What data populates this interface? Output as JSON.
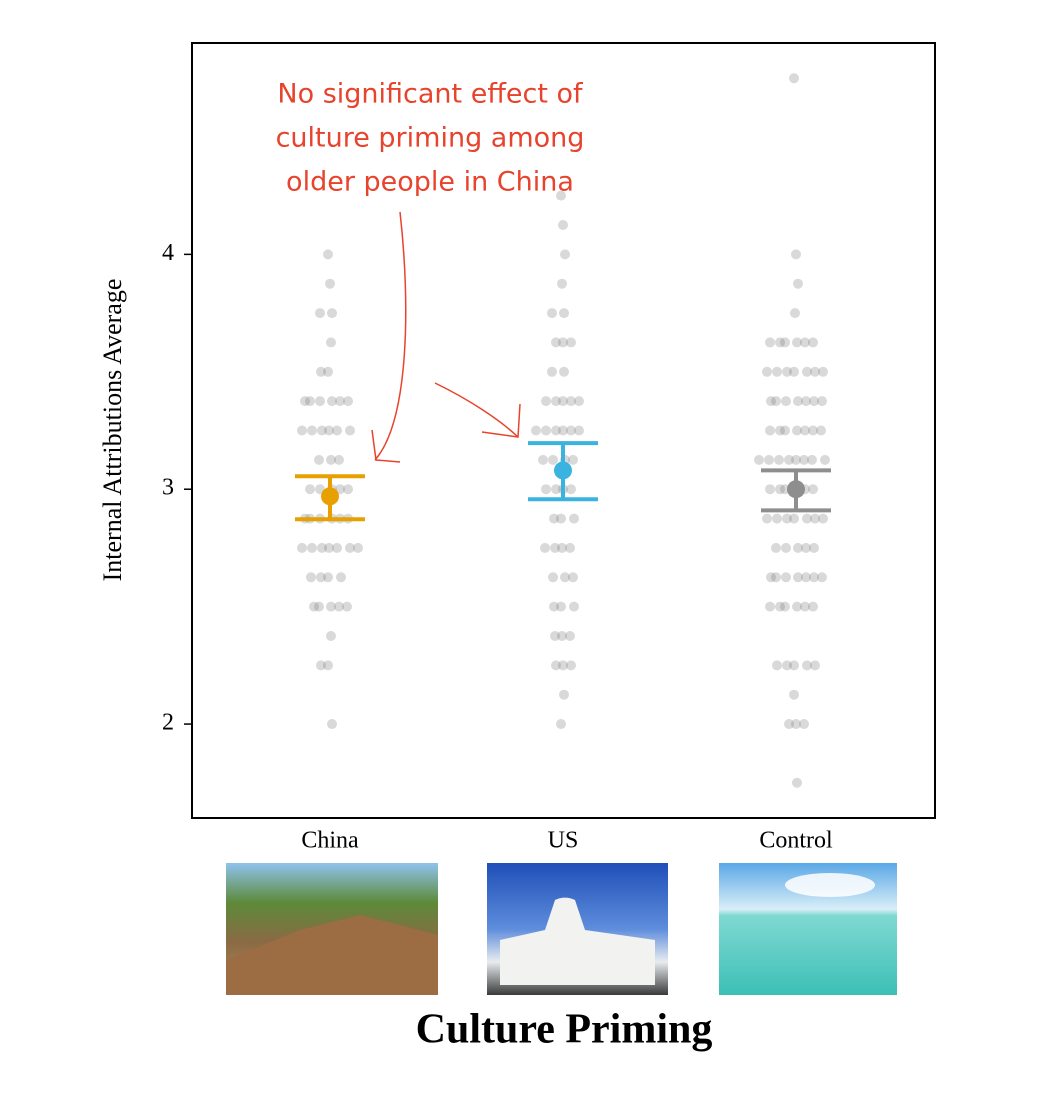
{
  "chart_data": {
    "type": "strip",
    "ylabel": "Internal Attributions Average",
    "xlabel": "Culture Priming",
    "categories": [
      "China",
      "US",
      "Control"
    ],
    "colors": [
      "#e8a000",
      "#3bb3e0",
      "#8e8e8e"
    ],
    "means": [
      2.97,
      3.08,
      3.0
    ],
    "upper": [
      3.055,
      3.196,
      3.08
    ],
    "lower": [
      2.872,
      2.957,
      2.91
    ],
    "points": [
      [
        4.0,
        3.875,
        3.75,
        3.75,
        3.625,
        3.5,
        3.5,
        3.375,
        3.375,
        3.375,
        3.375,
        3.375,
        3.375,
        3.25,
        3.25,
        3.25,
        3.25,
        3.25,
        3.25,
        3.125,
        3.125,
        3.125,
        3.0,
        3.0,
        3.0,
        3.0,
        3.0,
        2.875,
        2.875,
        2.875,
        2.875,
        2.875,
        2.875,
        2.75,
        2.75,
        2.75,
        2.75,
        2.75,
        2.75,
        2.75,
        2.625,
        2.625,
        2.625,
        2.625,
        2.5,
        2.5,
        2.5,
        2.5,
        2.5,
        2.375,
        2.25,
        2.25,
        2.0
      ],
      [
        4.25,
        4.125,
        4.0,
        3.875,
        3.75,
        3.75,
        3.625,
        3.625,
        3.625,
        3.5,
        3.5,
        3.375,
        3.375,
        3.375,
        3.375,
        3.375,
        3.25,
        3.25,
        3.25,
        3.25,
        3.25,
        3.25,
        3.125,
        3.125,
        3.125,
        3.125,
        3.0,
        3.0,
        3.0,
        3.0,
        2.875,
        2.875,
        2.875,
        2.75,
        2.75,
        2.75,
        2.75,
        2.625,
        2.625,
        2.625,
        2.5,
        2.5,
        2.5,
        2.375,
        2.375,
        2.375,
        2.25,
        2.25,
        2.25,
        2.125,
        2.0
      ],
      [
        4.75,
        4.0,
        3.875,
        3.75,
        3.625,
        3.625,
        3.625,
        3.625,
        3.625,
        3.625,
        3.5,
        3.5,
        3.5,
        3.5,
        3.5,
        3.5,
        3.5,
        3.375,
        3.375,
        3.375,
        3.375,
        3.375,
        3.375,
        3.375,
        3.25,
        3.25,
        3.25,
        3.25,
        3.25,
        3.25,
        3.25,
        3.125,
        3.125,
        3.125,
        3.125,
        3.125,
        3.125,
        3.125,
        3.125,
        3.0,
        3.0,
        3.0,
        3.0,
        3.0,
        3.0,
        2.875,
        2.875,
        2.875,
        2.875,
        2.875,
        2.875,
        2.875,
        2.75,
        2.75,
        2.75,
        2.75,
        2.75,
        2.625,
        2.625,
        2.625,
        2.625,
        2.625,
        2.625,
        2.625,
        2.5,
        2.5,
        2.5,
        2.5,
        2.5,
        2.5,
        2.25,
        2.25,
        2.25,
        2.25,
        2.25,
        2.125,
        2.0,
        2.0,
        2.0,
        1.75
      ]
    ],
    "ylim": [
      1.6,
      4.9
    ],
    "yticks": [
      2,
      3,
      4
    ],
    "annotation": [
      "No significant effect of",
      "culture priming among",
      "older people in China"
    ],
    "annotation_color": "#e8432c"
  }
}
